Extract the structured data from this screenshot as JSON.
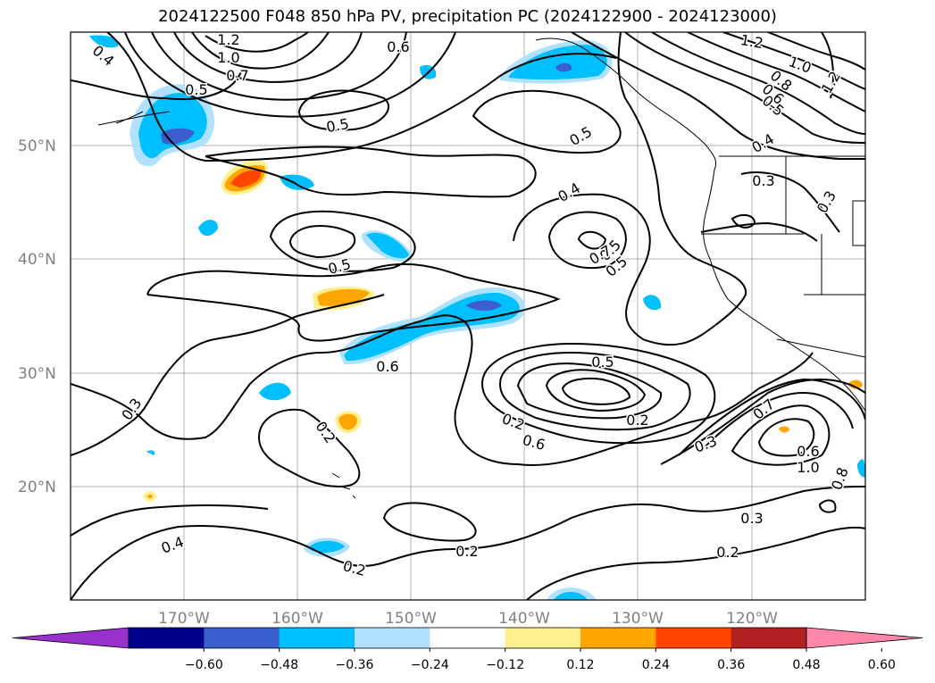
{
  "title": "2024122500 F048 850 hPa PV, precipitation PC (2024122900 - 2024123000)",
  "lat_ticks": [
    "50°N",
    "40°N",
    "30°N",
    "20°N"
  ],
  "lon_ticks": [
    "170°W",
    "160°W",
    "150°W",
    "140°W",
    "130°W",
    "120°W"
  ],
  "contour_labels": [
    "0.4",
    "1.2",
    "1.0",
    "0.7",
    "0.6",
    "0.5",
    "0.5",
    "0.5",
    "0.5",
    "0.4",
    "0.5",
    "0.5",
    "0.7",
    "0.6",
    "0.2",
    "0.3",
    "0.2",
    "0.6",
    "0.5",
    "0.7",
    "0.6",
    "1.0",
    "0.8",
    "0.4",
    "0.2",
    "0.2",
    "0.2",
    "0.3",
    "0.2",
    "1.2",
    "1.0",
    "0.8",
    "0.6",
    "0.5",
    "0.4",
    "0.3",
    "0.3",
    "1.2",
    "0.3"
  ],
  "colorbar": {
    "colors": [
      "#9932cc",
      "#00008b",
      "#3a5fcd",
      "#00bfff",
      "#b0e2ff",
      "#ffffff",
      "#fff08f",
      "#ffa500",
      "#ff4500",
      "#b22222",
      "#ff88aa"
    ],
    "tick_labels": [
      "−0.60",
      "−0.48",
      "−0.36",
      "−0.24",
      "−0.12",
      "0.12",
      "0.24",
      "0.36",
      "0.48",
      "0.60"
    ]
  }
}
